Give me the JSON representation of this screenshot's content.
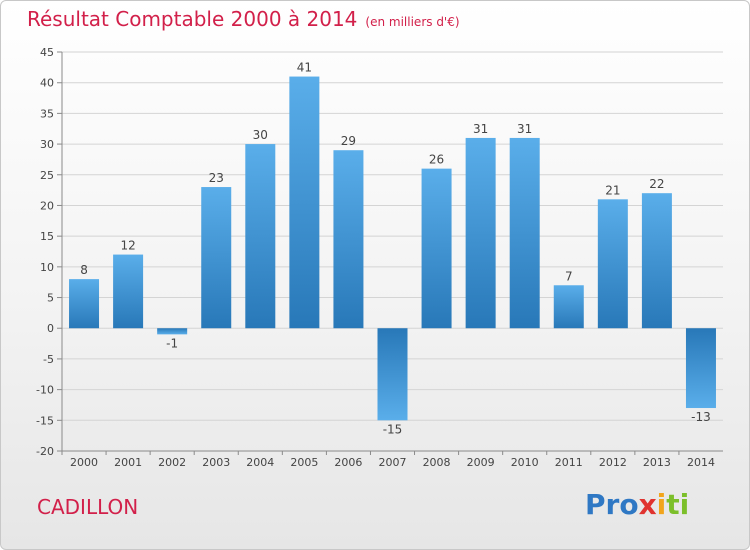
{
  "header": {
    "title": "Résultat Comptable 2000 à 2014",
    "unit": "(en milliers d'€)"
  },
  "footer": {
    "commune": "CADILLON",
    "logo_parts": [
      "Pro",
      "x",
      "i",
      "ti"
    ]
  },
  "colors": {
    "title": "#d2204a",
    "bar_light": "#5aaeea",
    "bar_dark": "#2878b8",
    "grid": "#d4d4d4",
    "axis": "#8a8a8a"
  },
  "chart_data": {
    "type": "bar",
    "categories": [
      "2000",
      "2001",
      "2002",
      "2003",
      "2004",
      "2005",
      "2006",
      "2007",
      "2008",
      "2009",
      "2010",
      "2011",
      "2012",
      "2013",
      "2014"
    ],
    "values": [
      8,
      12,
      -1,
      23,
      30,
      41,
      29,
      -15,
      26,
      31,
      31,
      7,
      21,
      22,
      -13
    ],
    "value_labels": [
      "8",
      "12",
      "-1",
      "23",
      "30",
      "41",
      "29",
      "-15",
      "26",
      "31",
      "31",
      "7",
      "21",
      "22",
      "-13"
    ],
    "ylim": [
      -20,
      45
    ],
    "yticks": [
      45,
      40,
      35,
      30,
      25,
      20,
      15,
      10,
      5,
      0,
      -5,
      -10,
      -15,
      -20
    ],
    "ytick_labels": [
      "45",
      "40",
      "35",
      "30",
      "25",
      "20",
      "15",
      "10",
      "5",
      "0",
      "-5",
      "-10",
      "-15",
      "-20"
    ],
    "grid": true,
    "title": "Résultat Comptable 2000 à 2014",
    "ylabel": "(en milliers d'€)",
    "xlabel": ""
  }
}
